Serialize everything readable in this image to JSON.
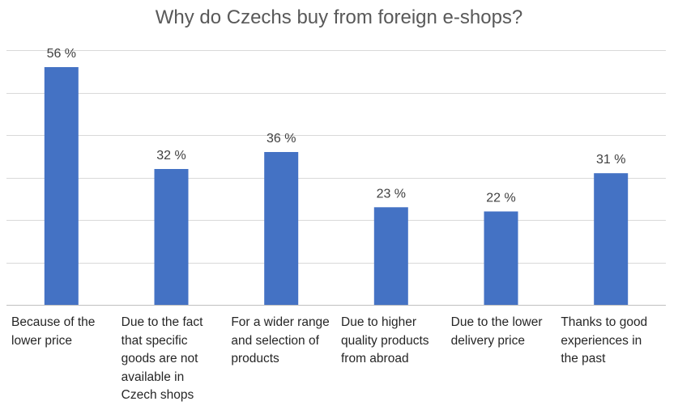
{
  "chart_data": {
    "type": "bar",
    "title": "Why do Czechs buy from foreign e-shops?",
    "categories": [
      "Because of the lower price",
      "Due to the fact that specific goods are not available in Czech shops",
      "For a wider range and selection of products",
      "Due to higher quality products from abroad",
      "Due to the lower delivery price",
      "Thanks to good experiences in the past"
    ],
    "values": [
      56,
      32,
      36,
      23,
      22,
      31
    ],
    "data_labels": [
      "56 %",
      "32 %",
      "36 %",
      "23 %",
      "22 %",
      "31 %"
    ],
    "ylim": [
      0,
      60
    ],
    "grid": true,
    "legend": "none",
    "colors": {
      "bar": "#4472C4",
      "grid": "#d9d9d9",
      "axis": "#bfbfbf",
      "label": "#404040"
    }
  }
}
